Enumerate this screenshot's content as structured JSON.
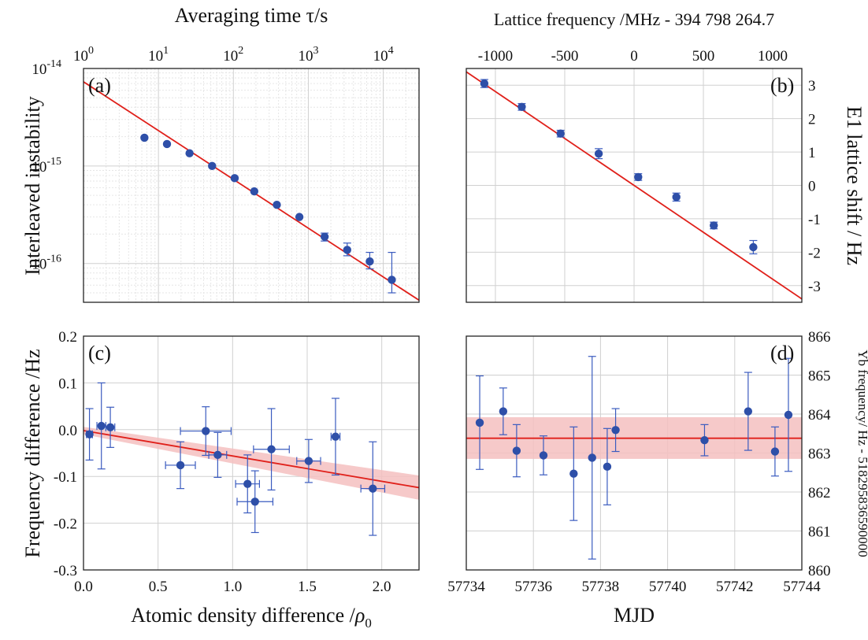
{
  "chart_data": [
    {
      "panel": "a",
      "label": "(a)",
      "type": "scatter",
      "x_scale": "log",
      "y_scale": "log",
      "xlabel": "Averaging time τ/s",
      "ylabel": "Interleaved instability",
      "xlim": [
        1,
        30000
      ],
      "ylim": [
        4e-17,
        1e-14
      ],
      "x_ticks": [
        {
          "value": 1,
          "base": "10",
          "exp": "0"
        },
        {
          "value": 10,
          "base": "10",
          "exp": "1"
        },
        {
          "value": 100,
          "base": "10",
          "exp": "2"
        },
        {
          "value": 1000,
          "base": "10",
          "exp": "3"
        },
        {
          "value": 10000,
          "base": "10",
          "exp": "4"
        }
      ],
      "y_ticks": [
        {
          "value": 1e-16,
          "base": "10",
          "exp": "-16"
        },
        {
          "value": 1e-15,
          "base": "10",
          "exp": "-15"
        },
        {
          "value": 1e-14,
          "base": "10",
          "exp": "-14"
        }
      ],
      "points": [
        {
          "x": 6.5,
          "y": 1.95e-15
        },
        {
          "x": 13,
          "y": 1.68e-15
        },
        {
          "x": 26,
          "y": 1.35e-15
        },
        {
          "x": 52,
          "y": 1e-15
        },
        {
          "x": 104,
          "y": 7.5e-16
        },
        {
          "x": 190,
          "y": 5.5e-16
        },
        {
          "x": 380,
          "y": 4e-16
        },
        {
          "x": 760,
          "y": 3e-16
        },
        {
          "x": 1650,
          "y": 1.88e-16,
          "yerr": [
            1.7e-16,
            2.05e-16
          ]
        },
        {
          "x": 3300,
          "y": 1.38e-16,
          "yerr": [
            1.2e-16,
            1.62e-16
          ]
        },
        {
          "x": 6600,
          "y": 1.05e-16,
          "yerr": [
            8.8e-17,
            1.3e-16
          ]
        },
        {
          "x": 13000,
          "y": 6.8e-17,
          "yerr": [
            5e-17,
            1.3e-16
          ]
        }
      ],
      "fit": {
        "x": [
          1,
          30000
        ],
        "y": [
          7.3e-15,
          4.2e-17
        ]
      }
    },
    {
      "panel": "b",
      "label": "(b)",
      "type": "scatter",
      "xlabel": "Lattice frequency /MHz - 394 798 264.7",
      "ylabel": "E1 lattice shift / Hz",
      "xlim": [
        -1210,
        1210
      ],
      "ylim": [
        -3.5,
        3.5
      ],
      "x_ticks": [
        -1000,
        -500,
        0,
        500,
        1000
      ],
      "x_tick_labels": [
        "-1000",
        "-500",
        "0",
        "500",
        "1000"
      ],
      "y_ticks": [
        -3,
        -2,
        -1,
        0,
        1,
        2,
        3
      ],
      "y_tick_labels": [
        "-3",
        "-2",
        "-1",
        "0",
        "1",
        "2",
        "3"
      ],
      "points": [
        {
          "x": -1080,
          "y": 3.05,
          "yerr": 0.12
        },
        {
          "x": -810,
          "y": 2.35,
          "yerr": 0.1
        },
        {
          "x": -530,
          "y": 1.55,
          "yerr": 0.1
        },
        {
          "x": -255,
          "y": 0.95,
          "yerr": 0.15
        },
        {
          "x": 30,
          "y": 0.25,
          "yerr": 0.1
        },
        {
          "x": 305,
          "y": -0.35,
          "yerr": 0.12
        },
        {
          "x": 575,
          "y": -1.2,
          "yerr": 0.1
        },
        {
          "x": 860,
          "y": -1.85,
          "yerr": 0.2
        }
      ],
      "fit": {
        "x": [
          -1210,
          1210
        ],
        "y": [
          3.4,
          -3.4
        ]
      }
    },
    {
      "panel": "c",
      "label": "(c)",
      "type": "scatter",
      "xlabel": "Atomic density difference /ρ0",
      "xlabel_main": "Atomic density difference /",
      "xlabel_symbol": "ρ",
      "xlabel_sub": "0",
      "ylabel": "Frequency difference /Hz",
      "xlim": [
        0,
        2.25
      ],
      "ylim": [
        -0.3,
        0.2
      ],
      "x_ticks": [
        0,
        0.5,
        1.0,
        1.5,
        2.0
      ],
      "x_tick_labels": [
        "0.0",
        "0.5",
        "1.0",
        "1.5",
        "2.0"
      ],
      "y_ticks": [
        -0.3,
        -0.2,
        -0.1,
        0.0,
        0.1,
        0.2
      ],
      "y_tick_labels": [
        "-0.3",
        "-0.2",
        "-0.1",
        "0.0",
        "0.1",
        "0.2"
      ],
      "points": [
        {
          "x": 0.04,
          "y": -0.01,
          "xerr": 0.02,
          "yerr": 0.055
        },
        {
          "x": 0.12,
          "y": 0.008,
          "xerr": 0.03,
          "yerr": 0.092
        },
        {
          "x": 0.18,
          "y": 0.005,
          "xerr": 0.03,
          "yerr": 0.043
        },
        {
          "x": 0.65,
          "y": -0.076,
          "xerr": 0.1,
          "yerr": 0.05
        },
        {
          "x": 0.82,
          "y": -0.003,
          "xerr": 0.17,
          "yerr": 0.052
        },
        {
          "x": 0.9,
          "y": -0.054,
          "xerr": 0.06,
          "yerr": 0.048
        },
        {
          "x": 1.1,
          "y": -0.116,
          "xerr": 0.08,
          "yerr": 0.062
        },
        {
          "x": 1.15,
          "y": -0.154,
          "xerr": 0.12,
          "yerr": 0.066
        },
        {
          "x": 1.26,
          "y": -0.042,
          "xerr": 0.12,
          "yerr": 0.087
        },
        {
          "x": 1.51,
          "y": -0.067,
          "xerr": 0.08,
          "yerr": 0.046
        },
        {
          "x": 1.69,
          "y": -0.015,
          "xerr": 0.03,
          "yerr": 0.082
        },
        {
          "x": 1.94,
          "y": -0.126,
          "xerr": 0.08,
          "yerr": 0.1
        }
      ],
      "fit": {
        "x": [
          0,
          2.25
        ],
        "y": [
          -0.002,
          -0.124
        ]
      },
      "band": {
        "x": [
          0,
          2.25
        ],
        "upper": [
          0.006,
          -0.098
        ],
        "lower": [
          -0.01,
          -0.15
        ]
      }
    },
    {
      "panel": "d",
      "label": "(d)",
      "type": "scatter",
      "xlabel": "MJD",
      "ylabel": "Yb frequency/ Hz - 518295836590000",
      "xlim": [
        57734,
        57744
      ],
      "ylim": [
        860,
        866
      ],
      "x_ticks": [
        57734,
        57736,
        57738,
        57740,
        57742,
        57744
      ],
      "x_tick_labels": [
        "57734",
        "57736",
        "57738",
        "57740",
        "57742",
        "57744"
      ],
      "y_ticks": [
        860,
        861,
        862,
        863,
        864,
        865,
        866
      ],
      "y_tick_labels": [
        "860",
        "861",
        "862",
        "863",
        "864",
        "865",
        "866"
      ],
      "points": [
        {
          "x": 57734.4,
          "y": 863.78,
          "yerr": 1.2
        },
        {
          "x": 57735.1,
          "y": 864.07,
          "yerr": 0.6
        },
        {
          "x": 57735.5,
          "y": 863.06,
          "yerr": 0.67
        },
        {
          "x": 57736.3,
          "y": 862.94,
          "yerr": 0.5
        },
        {
          "x": 57737.2,
          "y": 862.47,
          "yerr": 1.2
        },
        {
          "x": 57737.75,
          "y": 862.88,
          "yerr": 2.6
        },
        {
          "x": 57738.2,
          "y": 862.65,
          "yerr": 0.98
        },
        {
          "x": 57738.45,
          "y": 863.59,
          "yerr": 0.55
        },
        {
          "x": 57741.1,
          "y": 863.33,
          "yerr": 0.4
        },
        {
          "x": 57742.4,
          "y": 864.07,
          "yerr": 1.0
        },
        {
          "x": 57743.2,
          "y": 863.04,
          "yerr": 0.63
        },
        {
          "x": 57743.6,
          "y": 863.98,
          "yerr": 1.45
        }
      ],
      "mean": 863.38,
      "band": {
        "upper": 863.92,
        "lower": 862.85
      }
    }
  ],
  "colors": {
    "point": "#2e4fa8",
    "errorbar": "#3a5bbf",
    "fit": "#e0201a",
    "band": "#f4c0c0",
    "grid": "#d0d0d0",
    "minor_grid": "#e6e6e6",
    "frame": "#222222"
  }
}
